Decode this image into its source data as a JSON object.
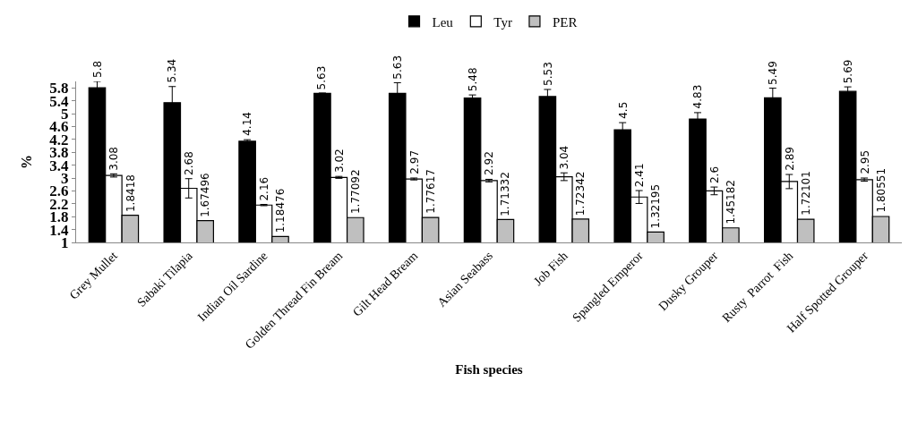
{
  "chart_data": {
    "type": "bar",
    "xlabel": "Fish species",
    "ylabel": "%",
    "categories": [
      "Grey Mullet",
      "Sabaki Tilapia",
      "Indian Oil Sardine",
      "Golden Thread Fin Bream",
      "Gilt Head Bream",
      "Asian Seabass",
      "Job Fish",
      "Spangled Emperor",
      "Dusky Grouper",
      "Rusty  Parrot  Fish",
      "Half Spotted Grouper"
    ],
    "series": [
      {
        "name": "Leu",
        "color": "#000000",
        "values": [
          5.8,
          5.34,
          4.14,
          5.63,
          5.63,
          5.48,
          5.53,
          4.5,
          4.83,
          5.49,
          5.69
        ],
        "errors": [
          0.2,
          0.5,
          0.05,
          0.01,
          0.33,
          0.1,
          0.22,
          0.22,
          0.2,
          0.3,
          0.14
        ]
      },
      {
        "name": "Tyr",
        "color": "#ffffff",
        "values": [
          3.08,
          2.68,
          2.16,
          3.02,
          2.97,
          2.92,
          3.04,
          2.41,
          2.6,
          2.89,
          2.95
        ],
        "errors": [
          0.05,
          0.3,
          0.02,
          0.03,
          0.03,
          0.04,
          0.12,
          0.2,
          0.12,
          0.22,
          0.05
        ]
      },
      {
        "name": "PER",
        "color": "#bfbfbf",
        "values": [
          1.8418,
          1.67496,
          1.18476,
          1.77092,
          1.77617,
          1.71332,
          1.72342,
          1.32195,
          1.45182,
          1.72101,
          1.80551
        ]
      }
    ],
    "ylim": [
      1,
      6
    ],
    "yticks": [
      1,
      1.4,
      1.8,
      2.2,
      2.6,
      3,
      3.4,
      3.8,
      4.2,
      4.6,
      5,
      5.4,
      5.8
    ],
    "data_labels": true,
    "legend": "top"
  }
}
